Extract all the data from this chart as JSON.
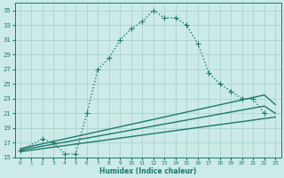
{
  "xlabel": "Humidex (Indice chaleur)",
  "bg_color": "#cceae8",
  "grid_color": "#aad4d0",
  "line_color": "#1a7a6a",
  "xlim": [
    -0.5,
    23.5
  ],
  "ylim": [
    15,
    36
  ],
  "xticks": [
    0,
    1,
    2,
    3,
    4,
    5,
    6,
    7,
    8,
    9,
    10,
    11,
    12,
    13,
    14,
    15,
    16,
    17,
    18,
    19,
    20,
    21,
    22,
    23
  ],
  "yticks": [
    15,
    17,
    19,
    21,
    23,
    25,
    27,
    29,
    31,
    33,
    35
  ],
  "series1_x": [
    0,
    2,
    3,
    4,
    5,
    6,
    7,
    8,
    9,
    10,
    11,
    12,
    13,
    14,
    15,
    16,
    17,
    18,
    19,
    20,
    21,
    22
  ],
  "series1_y": [
    16,
    17.5,
    17,
    15.5,
    15.5,
    21,
    27,
    28.5,
    31,
    32.5,
    33.5,
    35,
    34,
    34,
    33,
    30.5,
    26.5,
    25,
    24,
    23,
    23,
    21
  ],
  "series2_x": [
    0,
    22,
    23
  ],
  "series2_y": [
    16.2,
    23.5,
    22.2
  ],
  "series3_x": [
    0,
    22,
    23
  ],
  "series3_y": [
    16.0,
    22.0,
    21.0
  ],
  "series4_x": [
    0,
    23
  ],
  "series4_y": [
    15.8,
    20.5
  ],
  "marker": "+",
  "markersize": 4,
  "linewidth": 1.0
}
